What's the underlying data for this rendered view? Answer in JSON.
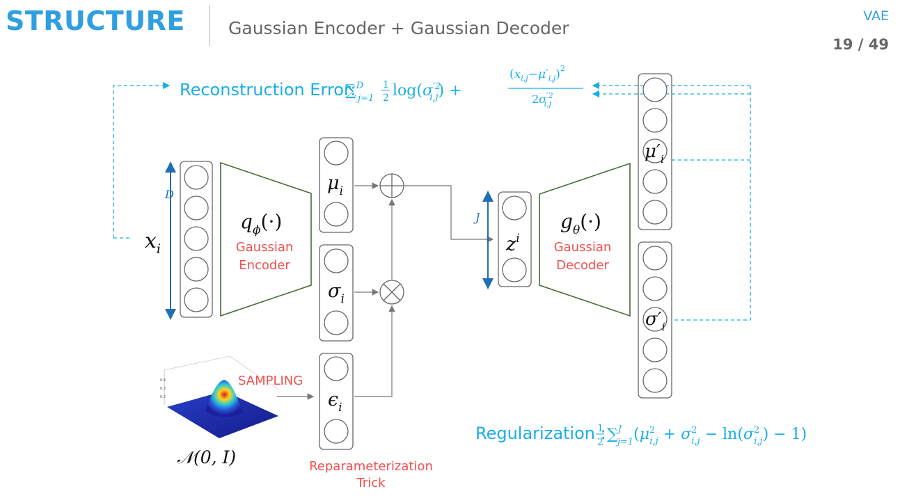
{
  "header": {
    "title": "STRUCTURE",
    "subtitle": "Gaussian Encoder + Gaussian Decoder",
    "tag": "VAE",
    "page": "19 / 49"
  },
  "diagram": {
    "reconstruction_label": "Reconstruction Error:",
    "regularization_label": "Regularization :",
    "input_label": "x",
    "input_sub": "i",
    "dim_D": "D",
    "dim_J": "J",
    "encoder_fn": "q",
    "encoder_fn_sub": "ϕ",
    "encoder_arg": "(·)",
    "encoder_name_1": "Gaussian",
    "encoder_name_2": "Encoder",
    "mu_label": "μ",
    "mu_sub": "i",
    "sigma_label": "σ",
    "sigma_sub": "i",
    "eps_label": "ϵ",
    "eps_sub": "i",
    "z_label": "z",
    "z_sup": "i",
    "decoder_fn": "g",
    "decoder_fn_sub": "θ",
    "decoder_arg": "(·)",
    "decoder_name_1": "Gaussian",
    "decoder_name_2": "Decoder",
    "mu_out_label": "μ′",
    "mu_out_sub": "i",
    "sigma_out_label": "σ′",
    "sigma_out_sub": "i",
    "sampling_label": "SAMPLING",
    "normal_label": "𝒩(0, I)",
    "reparam_1": "Reparameterization",
    "reparam_2": "Trick",
    "plus_symbol": "+",
    "times_symbol": "×"
  },
  "colors": {
    "accent": "#2f9fe0",
    "formula": "#1aaee6",
    "red_label": "#f05050",
    "trapezoid": "#4a6b35",
    "dim_arrow": "#1f6fb5"
  }
}
